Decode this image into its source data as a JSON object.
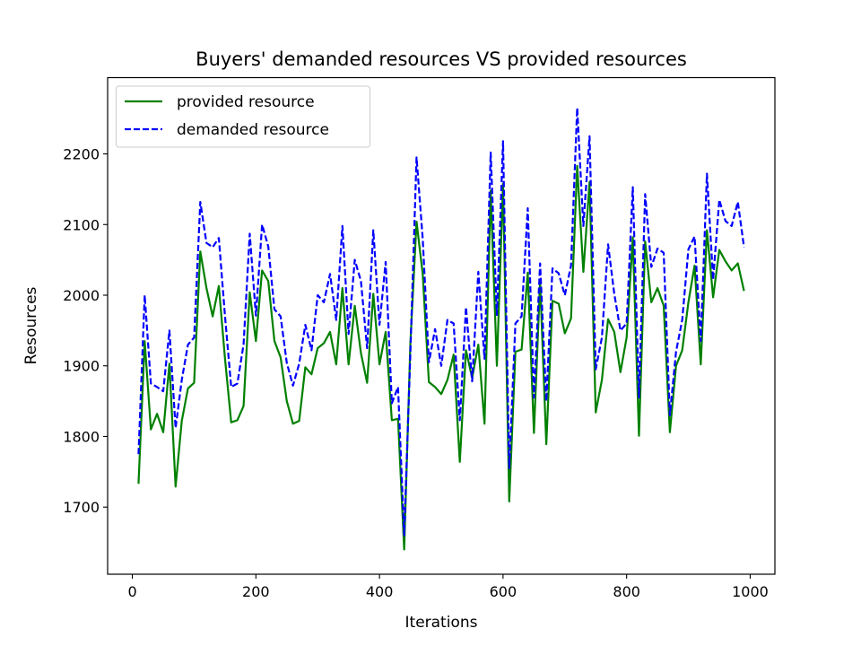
{
  "chart_data": {
    "type": "line",
    "title": "Buyers' demanded resources VS provided resources",
    "xlabel": "Iterations",
    "ylabel": "Resources",
    "xlim": [
      -40,
      1040
    ],
    "ylim": [
      1605,
      2308
    ],
    "xticks": [
      "0",
      "200",
      "400",
      "600",
      "800",
      "1000"
    ],
    "yticks": [
      "1700",
      "1800",
      "1900",
      "2000",
      "2100",
      "2200"
    ],
    "legend_position": "top-left",
    "grid": false,
    "x": [
      10,
      20,
      30,
      40,
      50,
      60,
      70,
      80,
      90,
      100,
      110,
      120,
      130,
      140,
      150,
      160,
      170,
      180,
      190,
      200,
      210,
      220,
      230,
      240,
      250,
      260,
      270,
      280,
      290,
      300,
      310,
      320,
      330,
      340,
      350,
      360,
      370,
      380,
      390,
      400,
      410,
      420,
      430,
      440,
      450,
      460,
      470,
      480,
      490,
      500,
      510,
      520,
      530,
      540,
      550,
      560,
      570,
      580,
      590,
      600,
      610,
      620,
      630,
      640,
      650,
      660,
      670,
      680,
      690,
      700,
      710,
      720,
      730,
      740,
      750,
      760,
      770,
      780,
      790,
      800,
      810,
      820,
      830,
      840,
      850,
      860,
      870,
      880,
      890,
      900,
      910,
      920,
      930,
      940,
      950,
      960,
      970,
      980,
      990
    ],
    "series": [
      {
        "name": "provided resource",
        "color": "#008000",
        "style": "solid",
        "values": [
          1733,
          1935,
          1810,
          1832,
          1806,
          1903,
          1729,
          1822,
          1868,
          1876,
          2062,
          2010,
          1970,
          2013,
          1910,
          1820,
          1823,
          1843,
          2004,
          1935,
          2035,
          2020,
          1935,
          1912,
          1850,
          1818,
          1822,
          1898,
          1888,
          1925,
          1932,
          1948,
          1902,
          2010,
          1902,
          1985,
          1918,
          1876,
          2002,
          1902,
          1948,
          1823,
          1825,
          1640,
          1932,
          2104,
          2030,
          1877,
          1870,
          1860,
          1880,
          1916,
          1764,
          1922,
          1883,
          1930,
          1818,
          2148,
          1900,
          2158,
          1708,
          1920,
          1923,
          2032,
          1805,
          2020,
          1789,
          1992,
          1988,
          1946,
          1967,
          2183,
          2033,
          2160,
          1834,
          1880,
          1966,
          1948,
          1891,
          1940,
          2082,
          1801,
          2076,
          1990,
          2010,
          1985,
          1806,
          1900,
          1922,
          1990,
          2042,
          1902,
          2092,
          1997,
          2064,
          2048,
          2035,
          2045,
          2006
        ]
      },
      {
        "name": "demanded resource",
        "color": "#0000ff",
        "style": "dashed",
        "values": [
          1775,
          2000,
          1875,
          1870,
          1864,
          1950,
          1812,
          1880,
          1930,
          1940,
          2132,
          2074,
          2068,
          2081,
          1970,
          1870,
          1875,
          1930,
          2087,
          1971,
          2100,
          2069,
          1980,
          1970,
          1904,
          1872,
          1903,
          1958,
          1922,
          2000,
          1990,
          2030,
          1965,
          2098,
          1945,
          2050,
          2020,
          1925,
          2092,
          1958,
          2047,
          1847,
          1870,
          1660,
          1918,
          2195,
          2080,
          1905,
          1952,
          1900,
          1965,
          1960,
          1823,
          1983,
          1878,
          2033,
          1910,
          2202,
          1972,
          2218,
          1755,
          1960,
          1970,
          2123,
          1855,
          2045,
          1850,
          2038,
          2031,
          2000,
          2042,
          2265,
          2098,
          2225,
          1895,
          1940,
          2072,
          2002,
          1950,
          1960,
          2153,
          1855,
          2143,
          2040,
          2066,
          2060,
          1830,
          1920,
          1965,
          2065,
          2083,
          1935,
          2172,
          2022,
          2135,
          2105,
          2098,
          2132,
          2068
        ]
      }
    ]
  }
}
